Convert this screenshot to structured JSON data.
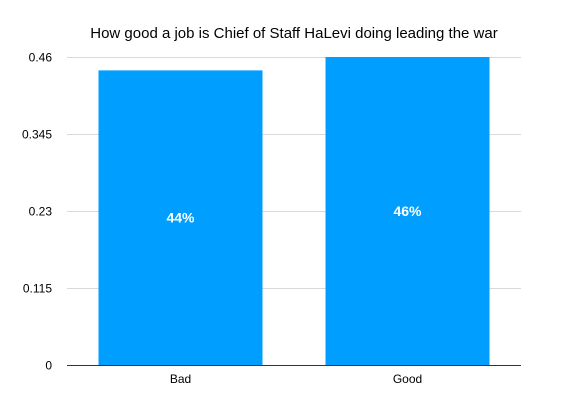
{
  "chart_data": {
    "type": "bar",
    "title": "How good a job is Chief of Staff HaLevi doing leading the war",
    "xlabel": "",
    "ylabel": "",
    "categories": [
      "Bad",
      "Good"
    ],
    "values": [
      0.44,
      0.46
    ],
    "data_labels": [
      "44%",
      "46%"
    ],
    "ylim": [
      0,
      0.46
    ],
    "yticks": [
      0,
      0.115,
      0.23,
      0.345,
      0.46
    ],
    "ytick_labels": [
      "0",
      "0.115",
      "0.23",
      "0.345",
      "0.46"
    ],
    "grid": true,
    "legend": "none",
    "bar_color": "#009fff",
    "gridline_color": "#d9d9d9"
  }
}
